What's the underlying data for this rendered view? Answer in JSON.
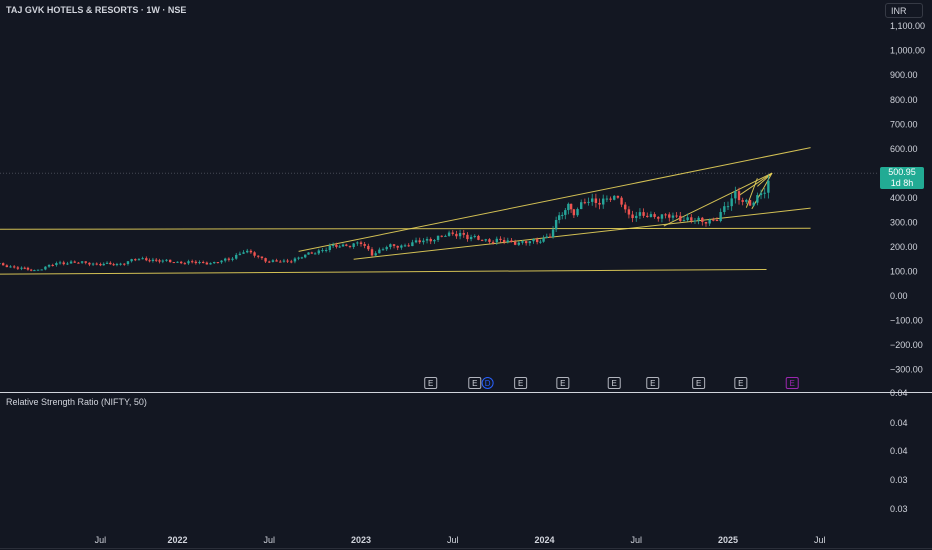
{
  "header": {
    "title": "TAJ GVK HOTELS & RESORTS · 1W · NSE",
    "currency": "INR"
  },
  "price_tag": {
    "value": "500.95",
    "countdown": "1d 8h"
  },
  "indicator": {
    "label": "Relative Strength Ratio (NIFTY, 50)"
  },
  "colors": {
    "background": "#131722",
    "up_candle": "#26a69a",
    "down_candle": "#ef5350",
    "trendline": "#e8d35a",
    "dividend_marker": "#2962ff",
    "upcoming_earnings": "#9c27b0"
  },
  "chart_data": [
    {
      "type": "candlestick",
      "title": "TAJ GVK HOTELS & RESORTS · 1W · NSE",
      "y_axis_label": "INR",
      "y_ticks": [
        "1,100.00",
        "1,000.00",
        "900.00",
        "800.00",
        "700.00",
        "600.00",
        "400.00",
        "300.00",
        "200.00",
        "100.00",
        "0.00",
        "−100.00",
        "−200.00",
        "−300.00"
      ],
      "ylim": [
        -350,
        1150
      ],
      "x_ticks": [
        "Jul",
        "2022",
        "Jul",
        "2023",
        "Jul",
        "2024",
        "Jul",
        "2025",
        "Jul"
      ],
      "last_price": 500.95,
      "series": [
        {
          "points": [
            [
              2020.9,
              140
            ],
            [
              2021.03,
              128
            ],
            [
              2021.15,
              112
            ],
            [
              2021.22,
              104
            ],
            [
              2021.28,
              118
            ],
            [
              2021.34,
              132
            ],
            [
              2021.42,
              138
            ],
            [
              2021.5,
              134
            ],
            [
              2021.58,
              130
            ],
            [
              2021.67,
              128
            ],
            [
              2021.75,
              146
            ],
            [
              2021.83,
              150
            ],
            [
              2021.92,
              142
            ],
            [
              2022.0,
              138
            ],
            [
              2022.1,
              136
            ],
            [
              2022.2,
              135
            ],
            [
              2022.28,
              150
            ],
            [
              2022.36,
              182
            ],
            [
              2022.42,
              168
            ],
            [
              2022.5,
              140
            ],
            [
              2022.58,
              140
            ],
            [
              2022.66,
              155
            ],
            [
              2022.75,
              180
            ],
            [
              2022.83,
              198
            ],
            [
              2022.92,
              208
            ],
            [
              2023.0,
              214
            ],
            [
              2023.06,
              172
            ],
            [
              2023.14,
              200
            ],
            [
              2023.22,
              205
            ],
            [
              2023.3,
              218
            ],
            [
              2023.38,
              232
            ],
            [
              2023.46,
              246
            ],
            [
              2023.54,
              258
            ],
            [
              2023.58,
              238
            ],
            [
              2023.66,
              230
            ],
            [
              2023.74,
              225
            ],
            [
              2023.82,
              220
            ],
            [
              2023.9,
              218
            ],
            [
              2023.96,
              224
            ],
            [
              2024.03,
              248
            ],
            [
              2024.08,
              320
            ],
            [
              2024.13,
              370
            ],
            [
              2024.16,
              345
            ],
            [
              2024.22,
              380
            ],
            [
              2024.3,
              390
            ],
            [
              2024.36,
              398
            ],
            [
              2024.42,
              385
            ],
            [
              2024.46,
              330
            ],
            [
              2024.54,
              325
            ],
            [
              2024.62,
              330
            ],
            [
              2024.7,
              320
            ],
            [
              2024.78,
              316
            ],
            [
              2024.86,
              300
            ],
            [
              2024.94,
              318
            ],
            [
              2025.0,
              370
            ],
            [
              2025.04,
              420
            ],
            [
              2025.08,
              395
            ],
            [
              2025.12,
              368
            ],
            [
              2025.16,
              395
            ],
            [
              2025.2,
              440
            ],
            [
              2025.24,
              501
            ]
          ]
        }
      ],
      "annotations": {
        "trendlines": 7,
        "event_markers": [
          {
            "x": 2023.38,
            "type": "E"
          },
          {
            "x": 2023.62,
            "type": "E"
          },
          {
            "x": 2023.69,
            "type": "D"
          },
          {
            "x": 2023.87,
            "type": "E"
          },
          {
            "x": 2024.1,
            "type": "E"
          },
          {
            "x": 2024.38,
            "type": "E"
          },
          {
            "x": 2024.59,
            "type": "E"
          },
          {
            "x": 2024.84,
            "type": "E"
          },
          {
            "x": 2025.07,
            "type": "E"
          },
          {
            "x": 2025.35,
            "type": "E",
            "upcoming": true
          }
        ]
      }
    },
    {
      "type": "line",
      "title": "Relative Strength Ratio (NIFTY, 50)",
      "y_ticks": [
        "0.04",
        "0.04",
        "0.04",
        "0.03",
        "0.03"
      ],
      "series": []
    }
  ]
}
